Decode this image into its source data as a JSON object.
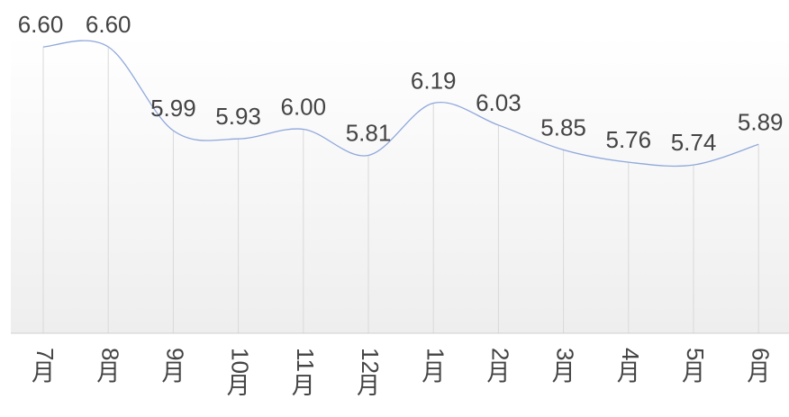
{
  "chart_data": {
    "type": "line",
    "title": "",
    "xlabel": "",
    "ylabel": "",
    "categories": [
      "7月",
      "8月",
      "9月",
      "10月",
      "11月",
      "12月",
      "1月",
      "2月",
      "3月",
      "4月",
      "5月",
      "6月"
    ],
    "values": [
      6.6,
      6.6,
      5.99,
      5.93,
      6.0,
      5.81,
      6.19,
      6.03,
      5.85,
      5.76,
      5.74,
      5.89
    ],
    "data_labels": [
      "6.60",
      "6.60",
      "5.99",
      "5.93",
      "6.00",
      "5.81",
      "6.19",
      "6.03",
      "5.85",
      "5.76",
      "5.74",
      "5.89"
    ],
    "smooth": true,
    "grid": "vertical",
    "legend": "none",
    "colors": {
      "line": "#8fa8dc",
      "grid": "#d9d9d9",
      "baseline": "#cfcfcf",
      "label": "#444444",
      "plot_bg_top": "#ffffff",
      "plot_bg_bottom": "#eeeeee"
    }
  }
}
